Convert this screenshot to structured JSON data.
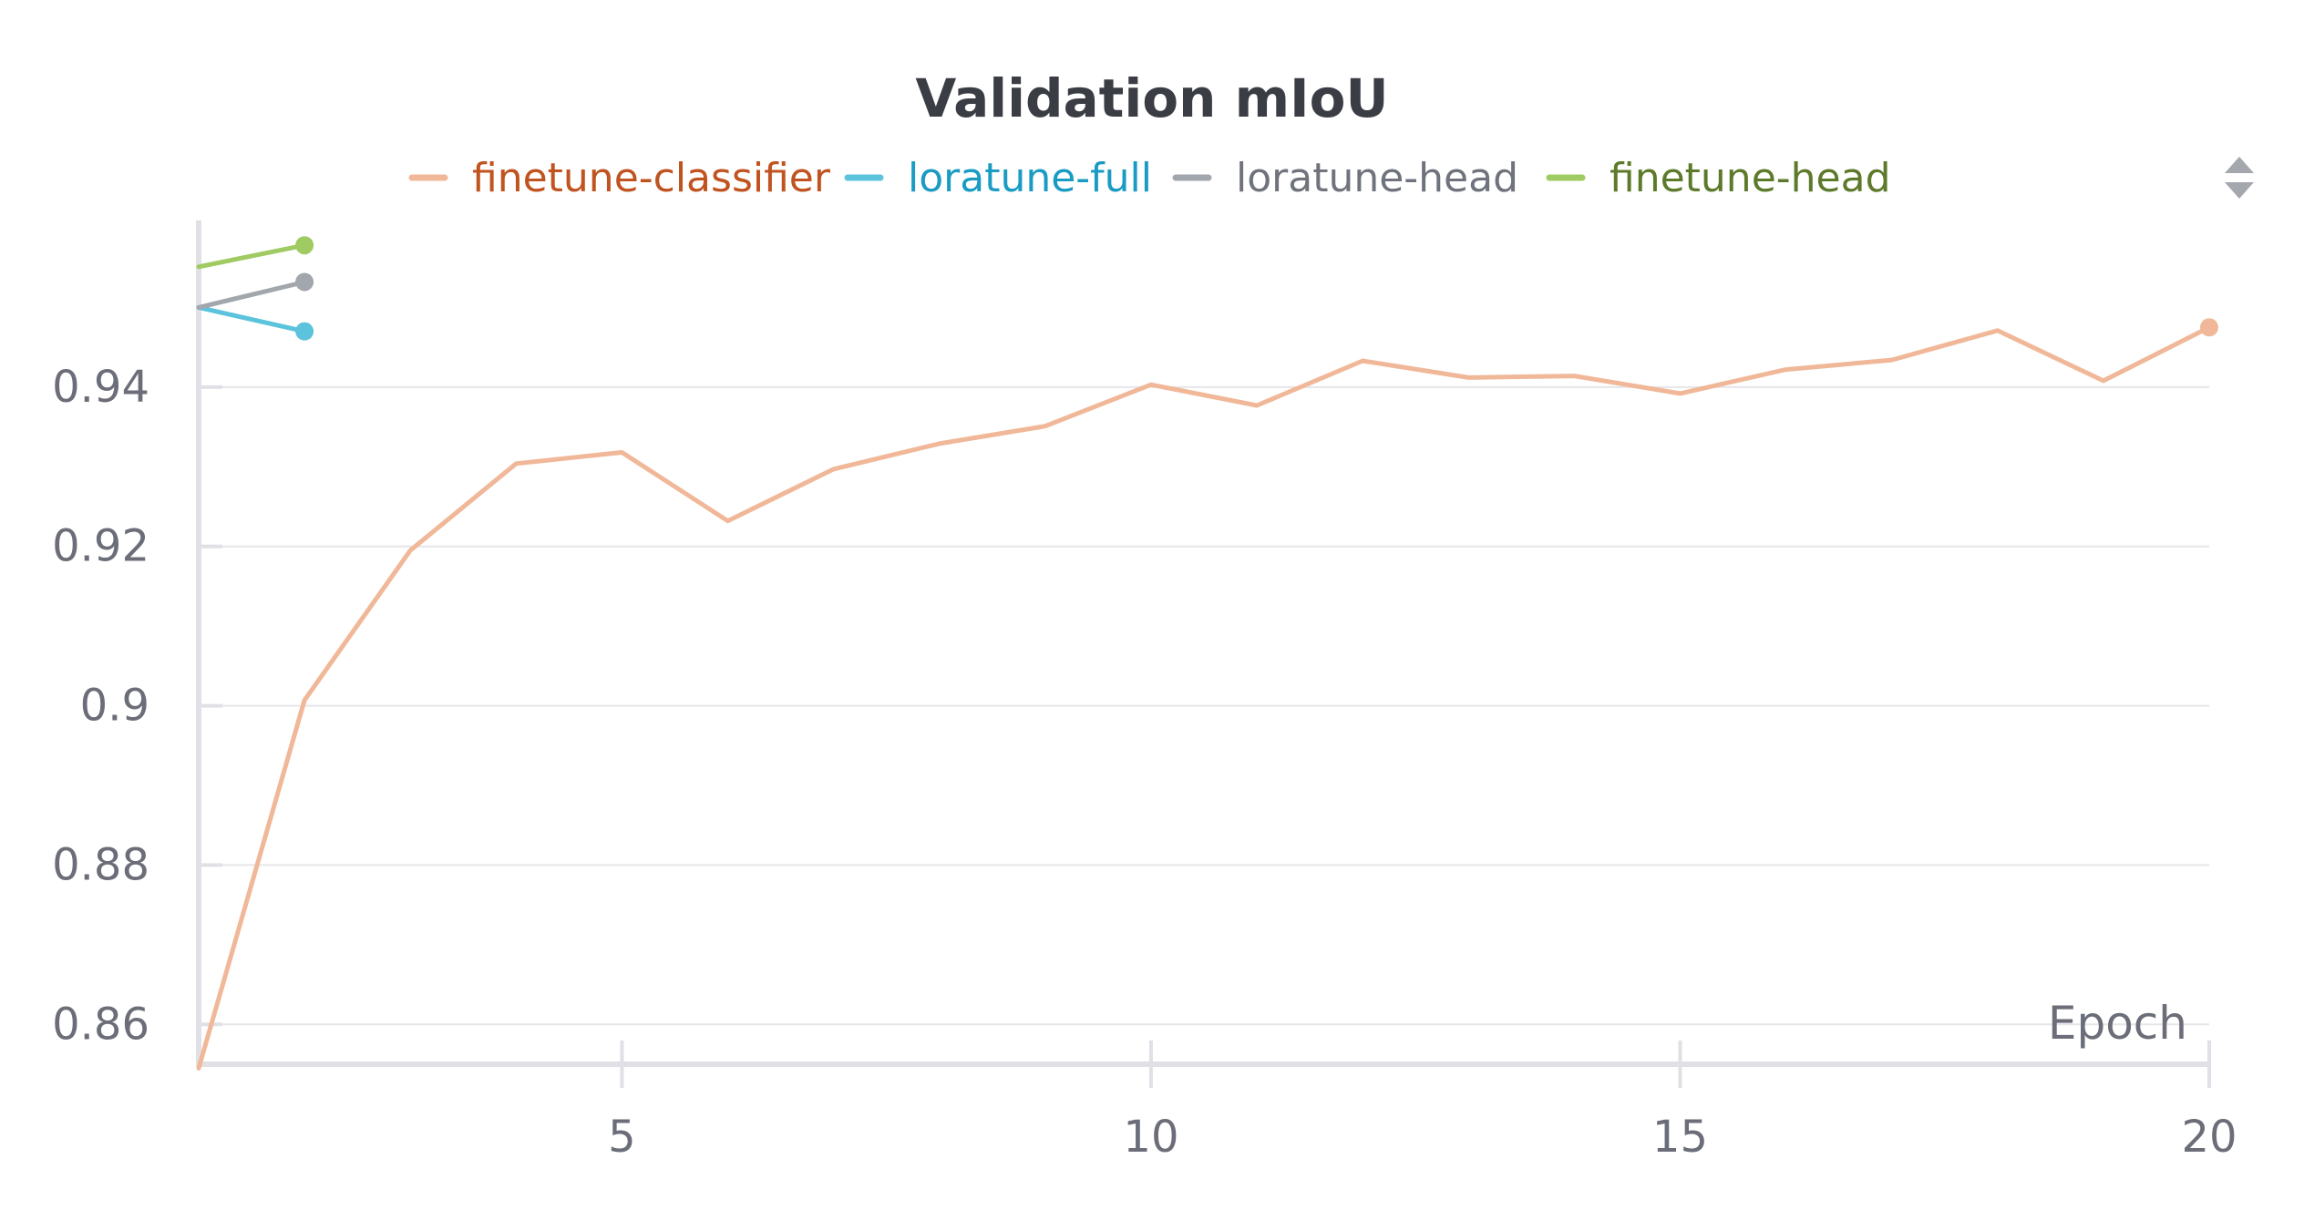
{
  "chart_data": {
    "type": "line",
    "title": "Validation mIoU",
    "xlabel": "Epoch",
    "ylabel": "",
    "xlim": [
      1,
      20
    ],
    "ylim": [
      0.855,
      0.96
    ],
    "xticks": [
      5,
      10,
      15,
      20
    ],
    "yticks": [
      0.86,
      0.88,
      0.9,
      0.92,
      0.94
    ],
    "ytick_labels": [
      "0.86",
      "0.88",
      "0.9",
      "0.92",
      "0.94"
    ],
    "grid": true,
    "legend_position": "top",
    "series": [
      {
        "name": "finetune-classifier",
        "color": "#f0b898",
        "label_color": "#c0531f",
        "x": [
          1,
          2,
          3,
          4,
          5,
          6,
          7,
          8,
          9,
          10,
          11,
          12,
          13,
          14,
          15,
          16,
          17,
          18,
          19,
          20
        ],
        "y": [
          0.8545,
          0.9007,
          0.9195,
          0.9304,
          0.9318,
          0.9232,
          0.9297,
          0.9329,
          0.9351,
          0.9403,
          0.9377,
          0.9433,
          0.9412,
          0.9414,
          0.9392,
          0.9422,
          0.9434,
          0.9471,
          0.9408,
          0.9475
        ]
      },
      {
        "name": "loratune-full",
        "color": "#5cc3dc",
        "label_color": "#1a9bc3",
        "x": [
          1,
          2
        ],
        "y": [
          0.95,
          0.947
        ]
      },
      {
        "name": "loratune-head",
        "color": "#a2a6ad",
        "label_color": "#6f737c",
        "x": [
          1,
          2
        ],
        "y": [
          0.95,
          0.9532
        ]
      },
      {
        "name": "finetune-head",
        "color": "#a0ca62",
        "label_color": "#5d7a2b",
        "x": [
          1,
          2
        ],
        "y": [
          0.9551,
          0.9578
        ]
      }
    ]
  }
}
